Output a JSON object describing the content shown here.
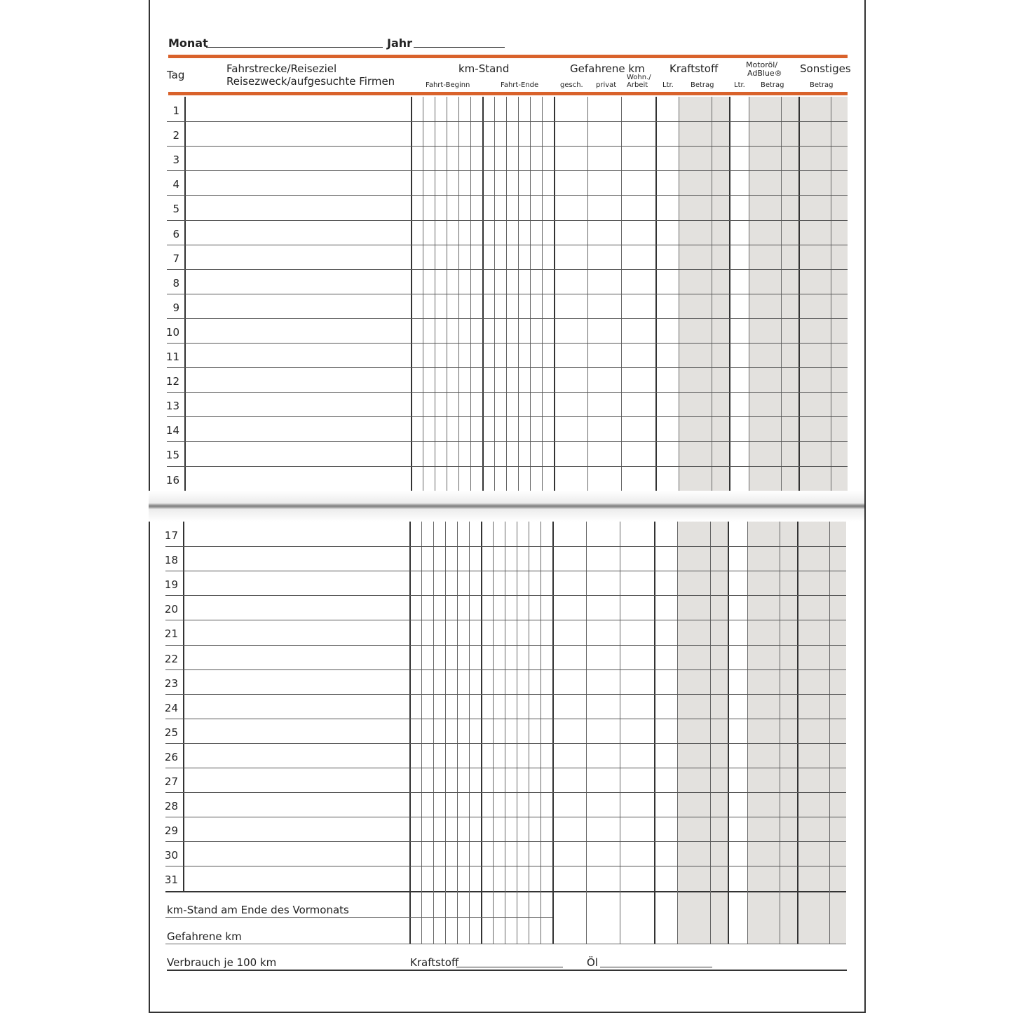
{
  "header": {
    "month_label": "Monat",
    "year_label": "Jahr"
  },
  "columns": {
    "tag": "Tag",
    "route_line1": "Fahrstrecke/Reiseziel",
    "route_line2": "Reisezweck/aufgesuchte Firmen",
    "km_stand": "km-Stand",
    "km_start": "Fahrt-Beginn",
    "km_end": "Fahrt-Ende",
    "driven_km": "Gefahrene km",
    "business": "gesch.",
    "private": "privat",
    "commute": "Wohn./\nArbeit",
    "commute_l1": "Wohn./",
    "commute_l2": "Arbeit",
    "fuel": "Kraftstoff",
    "fuel_ltr": "Ltr.",
    "fuel_amount": "Betrag",
    "oil_l1": "Motoröl/",
    "oil_l2": "AdBlue®",
    "oil_ltr": "Ltr.",
    "oil_amount": "Betrag",
    "other": "Sonstiges",
    "other_amount": "Betrag"
  },
  "days": [
    "1",
    "2",
    "3",
    "4",
    "5",
    "6",
    "7",
    "8",
    "9",
    "10",
    "11",
    "12",
    "13",
    "14",
    "15",
    "16",
    "17",
    "18",
    "19",
    "20",
    "21",
    "22",
    "23",
    "24",
    "25",
    "26",
    "27",
    "28",
    "29",
    "30",
    "31"
  ],
  "footer": {
    "prev_month_km": "km-Stand am Ende des Vormonats",
    "driven_km": "Gefahrene km",
    "consumption": "Verbrauch je 100 km",
    "fuel": "Kraftstoff",
    "oil": "Öl"
  },
  "colors": {
    "accent": "#d9622b",
    "shade": "#e3e1de"
  }
}
